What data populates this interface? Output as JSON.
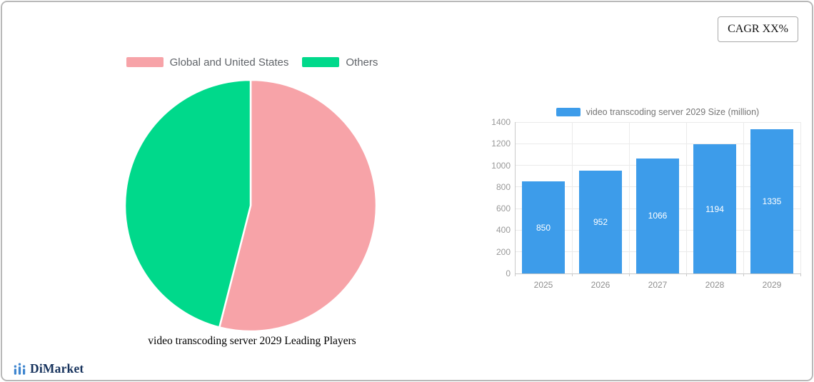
{
  "card": {
    "cagr_label": "CAGR XX%"
  },
  "branding": {
    "logo_text": "DiMarket",
    "logo_text_color": "#16325c",
    "logo_icon_color": "#3f86cf"
  },
  "chart_data": [
    {
      "type": "pie",
      "title": "video transcoding server 2029 Leading Players",
      "legend_position": "top",
      "start_angle": "12-oclock, clockwise",
      "slices": [
        {
          "label": "Global and United States",
          "value": 54,
          "color": "#f7a3a8"
        },
        {
          "label": "Others",
          "value": 46,
          "color": "#00d98b"
        }
      ]
    },
    {
      "type": "bar",
      "legend": "video transcoding server 2029 Size (million)",
      "categories": [
        "2025",
        "2026",
        "2027",
        "2028",
        "2029"
      ],
      "values": [
        850,
        952,
        1066,
        1194,
        1335
      ],
      "ylim": [
        0,
        1400
      ],
      "ytick_step": 200,
      "bar_color": "#3d9cea",
      "value_label_color": "#ffffff",
      "value_label_position": "inside-center",
      "grid": true,
      "legend_position": "top"
    }
  ]
}
